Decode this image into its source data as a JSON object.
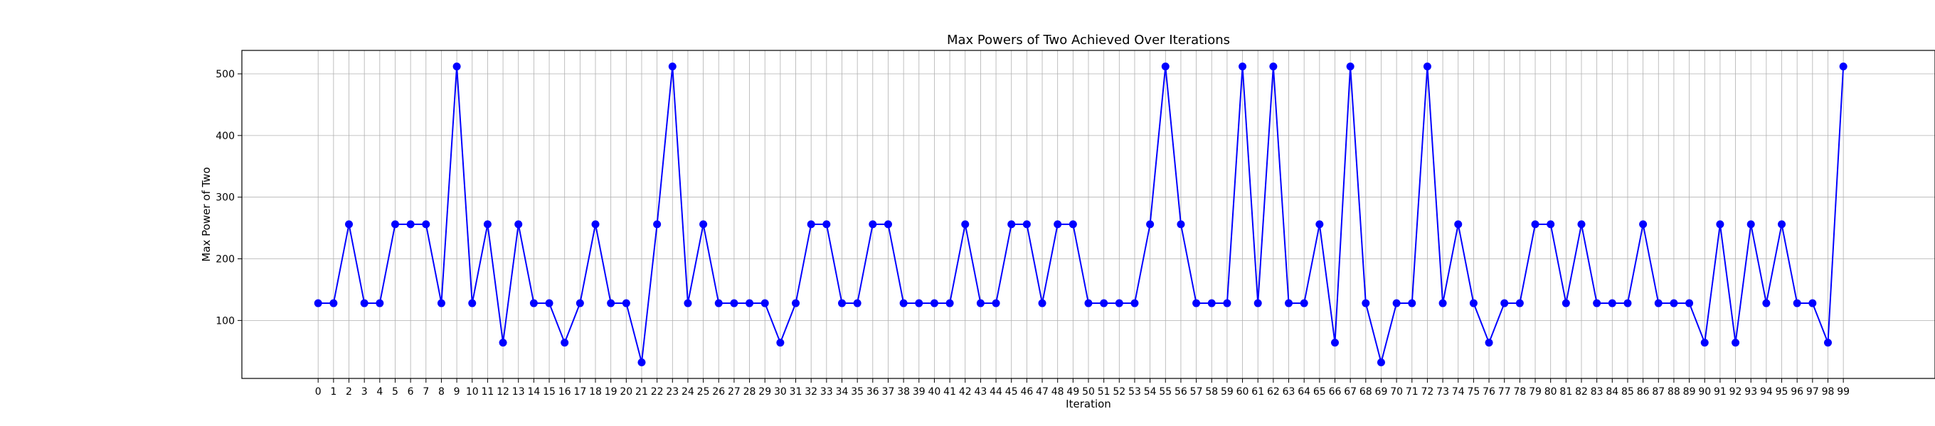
{
  "chart_data": {
    "type": "line",
    "title": "Max Powers of Two Achieved Over Iterations",
    "xlabel": "Iteration",
    "ylabel": "Max Power of Two",
    "x": [
      0,
      1,
      2,
      3,
      4,
      5,
      6,
      7,
      8,
      9,
      10,
      11,
      12,
      13,
      14,
      15,
      16,
      17,
      18,
      19,
      20,
      21,
      22,
      23,
      24,
      25,
      26,
      27,
      28,
      29,
      30,
      31,
      32,
      33,
      34,
      35,
      36,
      37,
      38,
      39,
      40,
      41,
      42,
      43,
      44,
      45,
      46,
      47,
      48,
      49,
      50,
      51,
      52,
      53,
      54,
      55,
      56,
      57,
      58,
      59,
      60,
      61,
      62,
      63,
      64,
      65,
      66,
      67,
      68,
      69,
      70,
      71,
      72,
      73,
      74,
      75,
      76,
      77,
      78,
      79,
      80,
      81,
      82,
      83,
      84,
      85,
      86,
      87,
      88,
      89,
      90,
      91,
      92,
      93,
      94,
      95,
      96,
      97,
      98,
      99
    ],
    "series": [
      {
        "color": "#0000ff",
        "marker": "circle",
        "values": [
          128,
          128,
          256,
          128,
          128,
          256,
          256,
          256,
          128,
          512,
          128,
          256,
          64,
          256,
          128,
          128,
          64,
          128,
          256,
          128,
          128,
          32,
          256,
          512,
          128,
          256,
          128,
          128,
          128,
          128,
          64,
          128,
          256,
          256,
          128,
          128,
          256,
          256,
          128,
          128,
          128,
          128,
          256,
          128,
          128,
          256,
          256,
          128,
          256,
          256,
          128,
          128,
          128,
          128,
          256,
          512,
          256,
          128,
          128,
          128,
          512,
          128,
          512,
          128,
          128,
          256,
          64,
          512,
          128,
          32,
          128,
          128,
          512,
          128,
          256,
          128,
          64,
          128,
          128,
          256,
          256,
          128,
          256,
          128,
          128,
          128,
          256,
          128,
          128,
          128,
          64,
          256,
          64,
          256,
          128,
          256,
          128,
          128,
          64,
          512
        ]
      }
    ],
    "y_ticks": [
      100,
      200,
      300,
      400,
      500
    ],
    "ylim": [
      6.0,
      538.0
    ],
    "xlim": [
      -4.95,
      104.95
    ],
    "grid": true,
    "legend": "none"
  }
}
